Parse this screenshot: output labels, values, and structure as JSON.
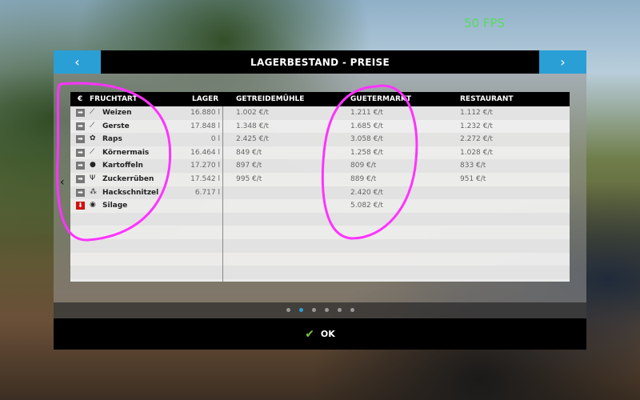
{
  "fps": "50 FPS",
  "dialog": {
    "title": "LAGERBESTAND - PREISE",
    "prev_icon": "chevron-left-icon",
    "next_icon": "chevron-right-icon",
    "accent": "#2a9fd6"
  },
  "table": {
    "headers": {
      "currency": "€",
      "fruit": "FRUCHTART",
      "storage": "LAGER",
      "mill": "GETREIDEMÜHLE",
      "market": "GUETERMARKT",
      "restaurant": "RESTAURANT"
    },
    "rows": [
      {
        "status": "arrow-right",
        "name": "Weizen",
        "lager": "16.880 l",
        "mill": "1.002 €/t",
        "market": "1.211 €/t",
        "restaurant": "1.112 €/t"
      },
      {
        "status": "arrow-right",
        "name": "Gerste",
        "lager": "17.848 l",
        "mill": "1.348 €/t",
        "market": "1.685 €/t",
        "restaurant": "1.232 €/t"
      },
      {
        "status": "arrow-right",
        "name": "Raps",
        "lager": "0 l",
        "mill": "2.425 €/t",
        "market": "3.058 €/t",
        "restaurant": "2.272 €/t"
      },
      {
        "status": "arrow-right",
        "name": "Körnermais",
        "lager": "16.464 l",
        "mill": "849 €/t",
        "market": "1.258 €/t",
        "restaurant": "1.028 €/t"
      },
      {
        "status": "arrow-right",
        "name": "Kartoffeln",
        "lager": "17.270 l",
        "mill": "897 €/t",
        "market": "809 €/t",
        "restaurant": "833 €/t"
      },
      {
        "status": "arrow-right",
        "name": "Zuckerrüben",
        "lager": "17.542 l",
        "mill": "995 €/t",
        "market": "889 €/t",
        "restaurant": "951 €/t"
      },
      {
        "status": "arrow-right",
        "name": "Hackschnitzel",
        "lager": "6.717 l",
        "mill": "",
        "market": "2.420 €/t",
        "restaurant": ""
      },
      {
        "status": "arrow-down",
        "name": "Silage",
        "lager": "",
        "mill": "",
        "market": "5.082 €/t",
        "restaurant": ""
      }
    ]
  },
  "pagination": {
    "pages": 6,
    "current": 2
  },
  "footer": {
    "ok_label": "OK"
  }
}
